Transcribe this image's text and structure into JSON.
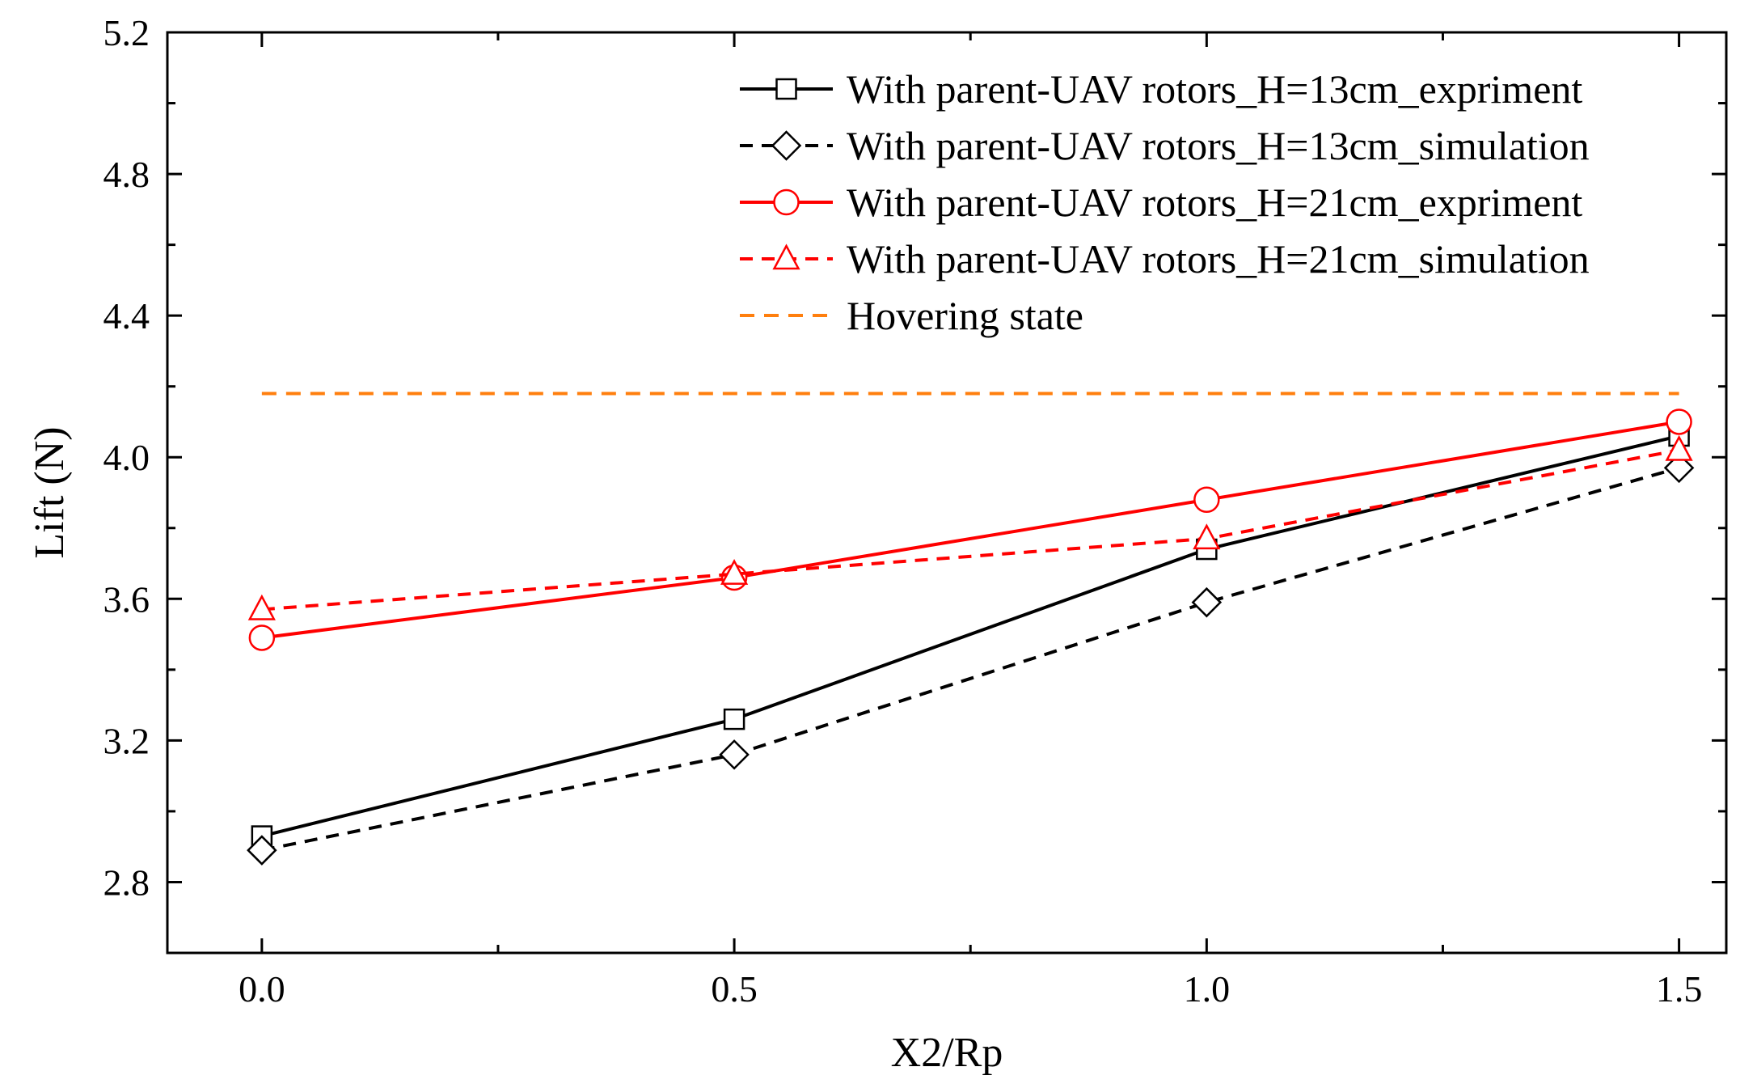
{
  "chart_data": {
    "type": "line",
    "title": "",
    "xlabel": "X2/Rp",
    "ylabel": "Lift (N)",
    "xlim": [
      -0.1,
      1.55
    ],
    "ylim": [
      2.6,
      5.2
    ],
    "x_ticks": [
      0.0,
      0.5,
      1.0,
      1.5
    ],
    "x_tick_labels": [
      "0.0",
      "0.5",
      "1.0",
      "1.5"
    ],
    "x_minor_ticks": [
      0.25,
      0.75,
      1.25
    ],
    "y_ticks": [
      2.8,
      3.2,
      3.6,
      4.0,
      4.4,
      4.8,
      5.2
    ],
    "y_tick_labels": [
      "2.8",
      "3.2",
      "3.6",
      "4.0",
      "4.4",
      "4.8",
      "5.2"
    ],
    "y_minor_ticks": [
      3.0,
      3.4,
      3.8,
      4.2,
      4.6,
      5.0
    ],
    "grid": false,
    "legend_position": "top-right",
    "x": [
      0.0,
      0.5,
      1.0,
      1.5
    ],
    "series": [
      {
        "name": "With parent-UAV rotors_H=13cm_expriment",
        "values": [
          2.93,
          3.26,
          3.74,
          4.06
        ],
        "color": "#000000",
        "dash": "solid",
        "marker": "square"
      },
      {
        "name": "With parent-UAV rotors_H=13cm_simulation",
        "values": [
          2.89,
          3.16,
          3.59,
          3.97
        ],
        "color": "#000000",
        "dash": "dashed",
        "marker": "diamond"
      },
      {
        "name": "With parent-UAV rotors_H=21cm_expriment",
        "values": [
          3.49,
          3.66,
          3.88,
          4.1
        ],
        "color": "#ff0000",
        "dash": "solid",
        "marker": "circle"
      },
      {
        "name": "With parent-UAV rotors_H=21cm_simulation",
        "values": [
          3.57,
          3.67,
          3.77,
          4.02
        ],
        "color": "#ff0000",
        "dash": "dashed",
        "marker": "triangle"
      }
    ],
    "reference_line": {
      "name": "Hovering state",
      "value": 4.18,
      "color": "#ff7f0e",
      "dash": "dashed"
    }
  }
}
